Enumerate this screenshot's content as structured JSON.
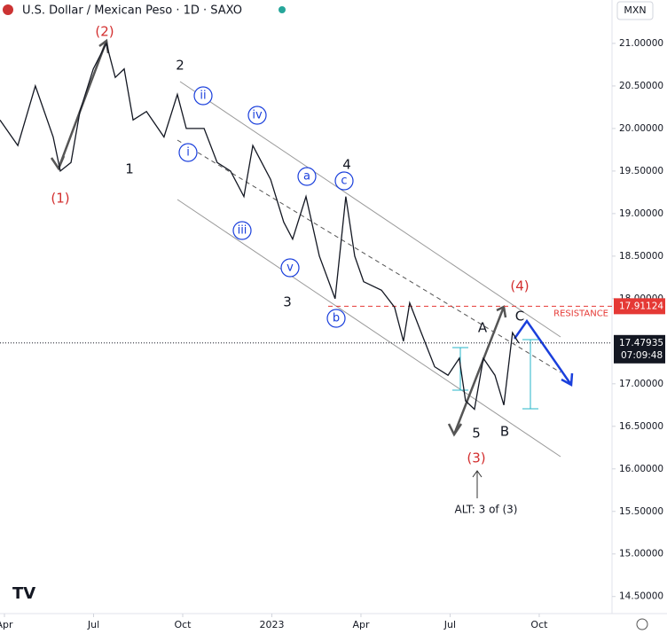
{
  "chart_data": {
    "type": "line",
    "title": "U.S. Dollar / Mexican Peso · 1D · SAXO",
    "currency": "MXN",
    "x": [
      -0.15,
      0.45,
      1.04,
      1.64,
      1.88,
      2.24,
      2.54,
      2.99,
      3.43,
      3.73,
      4.03,
      4.33,
      4.78,
      5.37,
      5.82,
      6.12,
      6.72,
      7.16,
      7.61,
      8.06,
      8.36,
      8.66,
      8.96,
      9.4,
      9.7,
      10.15,
      10.6,
      11.13,
      11.49,
      11.79,
      12.09,
      12.69,
      13.13,
      13.43,
      13.64,
      14.03,
      14.48,
      14.93,
      15.31,
      15.52,
      15.82,
      16.12,
      16.51,
      16.81,
      17.1,
      17.31
    ],
    "series": [
      {
        "name": "USD/MXN",
        "color": "#131722",
        "values": [
          20.1,
          19.8,
          20.5,
          19.9,
          19.5,
          19.6,
          20.2,
          20.7,
          21.0,
          20.6,
          20.7,
          20.1,
          20.2,
          19.9,
          20.4,
          20.0,
          20.0,
          19.6,
          19.5,
          19.2,
          19.8,
          19.6,
          19.4,
          18.9,
          18.7,
          19.2,
          18.5,
          18.0,
          19.2,
          18.5,
          18.2,
          18.1,
          17.9,
          17.5,
          17.95,
          17.6,
          17.2,
          17.1,
          17.3,
          16.8,
          16.7,
          17.3,
          17.1,
          16.75,
          17.6,
          17.48
        ]
      }
    ],
    "xlim": [
      -0.15,
      20.45
    ],
    "xticks": [
      {
        "value": 0,
        "label": "Apr"
      },
      {
        "value": 3,
        "label": "Jul"
      },
      {
        "value": 6,
        "label": "Oct"
      },
      {
        "value": 9,
        "label": "2023"
      },
      {
        "value": 12,
        "label": "Apr"
      },
      {
        "value": 15,
        "label": "Jul"
      },
      {
        "value": 18,
        "label": "Oct"
      }
    ],
    "ylim": [
      14.32,
      21.51
    ],
    "yticks": [
      {
        "value": 21,
        "label": "21.00000"
      },
      {
        "value": 20.5,
        "label": "20.50000"
      },
      {
        "value": 20,
        "label": "20.00000"
      },
      {
        "value": 19.5,
        "label": "19.50000"
      },
      {
        "value": 19,
        "label": "19.00000"
      },
      {
        "value": 18.5,
        "label": "18.50000"
      },
      {
        "value": 18,
        "label": "18.00000"
      },
      {
        "value": 17,
        "label": "17.00000"
      },
      {
        "value": 16.5,
        "label": "16.50000"
      },
      {
        "value": 16,
        "label": "16.00000"
      },
      {
        "value": 15.5,
        "label": "15.50000"
      },
      {
        "value": 15,
        "label": "15.00000"
      },
      {
        "value": 14.5,
        "label": "14.50000"
      }
    ],
    "resistance": 17.91124,
    "resistance_label": "RESISTANCE",
    "last_price": 17.47935,
    "countdown": "07:09:48",
    "wave_labels": [
      "(2)",
      "2",
      "ii",
      "iv",
      "i",
      "1",
      "(1)",
      "a",
      "4",
      "c",
      "iii",
      "v",
      "3",
      "b",
      "(4)",
      "A",
      "C",
      "5",
      "B",
      "(3)",
      "ALT: 3 of (3)"
    ]
  }
}
